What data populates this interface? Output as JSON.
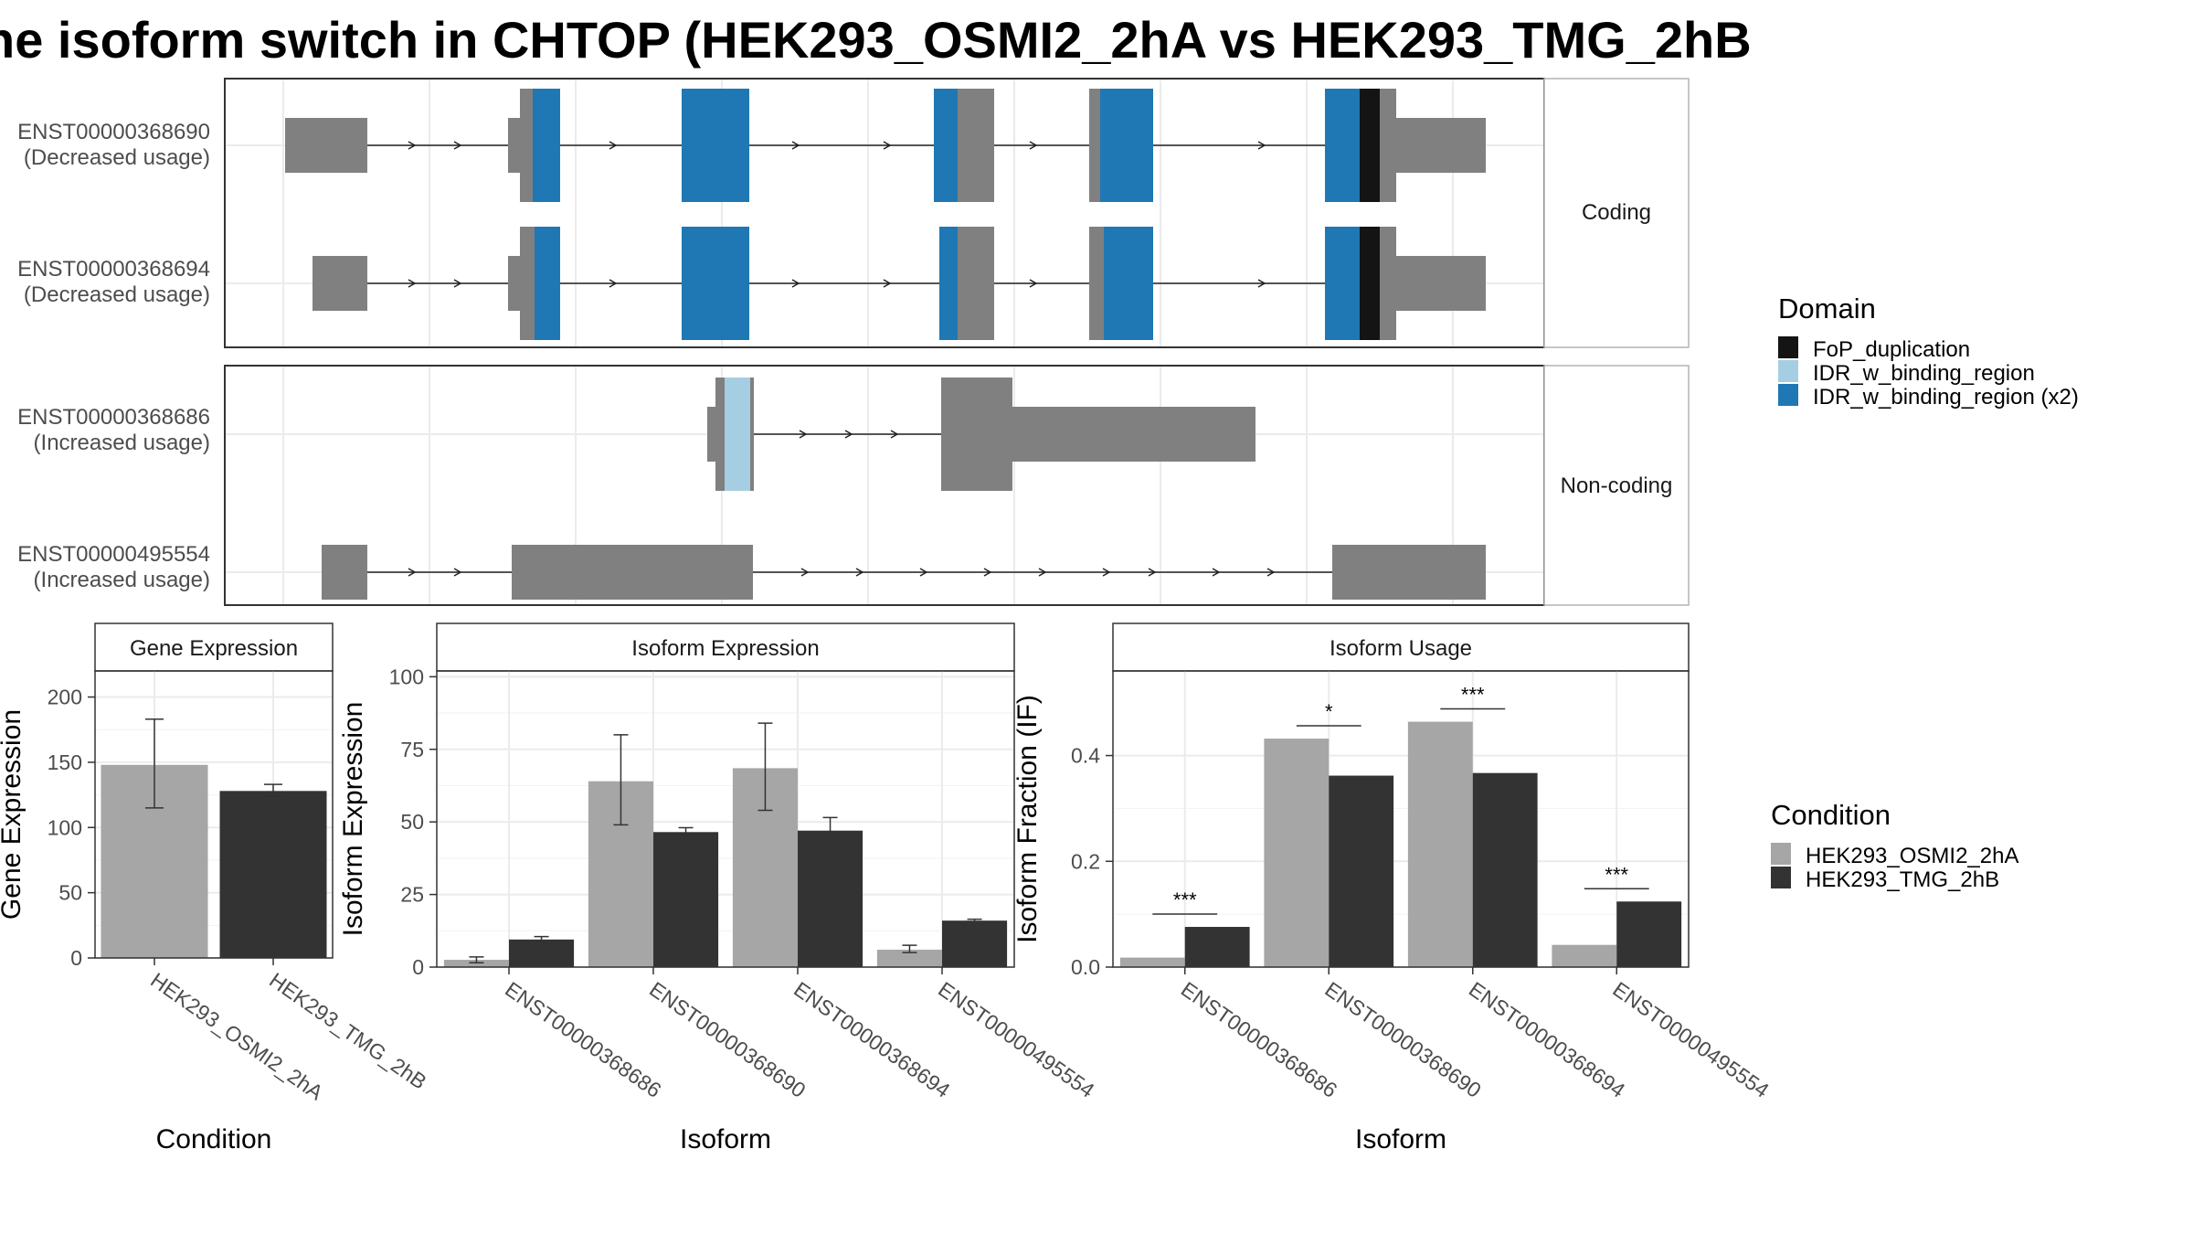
{
  "title": "he isoform switch in CHTOP (HEK293_OSMI2_2hA vs HEK293_TMG_2hB",
  "colors": {
    "exon_grey": "#808080",
    "fop_duplication": "#141414",
    "idr_binding": "#a6cee3",
    "idr_binding_x2": "#1f78b4",
    "osmi2": "#a6a6a6",
    "tmg": "#333333"
  },
  "structure": {
    "facets": [
      "Coding",
      "Non-coding"
    ],
    "transcripts": [
      {
        "id": "ENST00000368690",
        "usage": "(Decreased usage)",
        "facet": "Coding"
      },
      {
        "id": "ENST00000368694",
        "usage": "(Decreased usage)",
        "facet": "Coding"
      },
      {
        "id": "ENST00000368686",
        "usage": "(Increased usage)",
        "facet": "Non-coding"
      },
      {
        "id": "ENST00000495554",
        "usage": "(Increased usage)",
        "facet": "Non-coding"
      }
    ]
  },
  "domain_legend": {
    "title": "Domain",
    "items": [
      {
        "label": "FoP_duplication",
        "color": "#141414"
      },
      {
        "label": "IDR_w_binding_region",
        "color": "#a6cee3"
      },
      {
        "label": "IDR_w_binding_region (x2)",
        "color": "#1f78b4"
      }
    ]
  },
  "condition_legend": {
    "title": "Condition",
    "items": [
      {
        "label": "HEK293_OSMI2_2hA",
        "color": "#a6a6a6"
      },
      {
        "label": "HEK293_TMG_2hB",
        "color": "#333333"
      }
    ]
  },
  "chart_data": [
    {
      "type": "bar",
      "title": "Gene Expression",
      "xlabel": "Condition",
      "ylabel": "Gene Expression",
      "ylim": [
        0,
        220
      ],
      "yticks": [
        0,
        50,
        100,
        150,
        200
      ],
      "categories": [
        "HEK293_OSMI2_2hA",
        "HEK293_TMG_2hB"
      ],
      "values": [
        148,
        128
      ],
      "errors": [
        [
          115,
          183
        ],
        [
          124,
          133
        ]
      ]
    },
    {
      "type": "bar",
      "title": "Isoform Expression",
      "xlabel": "Isoform",
      "ylabel": "Isoform Expression",
      "ylim": [
        0,
        102
      ],
      "yticks": [
        0,
        25,
        50,
        75,
        100
      ],
      "categories": [
        "ENST00000368686",
        "ENST00000368690",
        "ENST00000368694",
        "ENST00000495554"
      ],
      "series": [
        {
          "name": "HEK293_OSMI2_2hA",
          "values": [
            2.5,
            64,
            68.5,
            6
          ],
          "errors": [
            [
              1.5,
              3.5
            ],
            [
              49,
              80
            ],
            [
              54,
              84
            ],
            [
              5,
              7.5
            ]
          ]
        },
        {
          "name": "HEK293_TMG_2hB",
          "values": [
            9.5,
            46.5,
            47,
            16
          ],
          "errors": [
            [
              9,
              10.5
            ],
            [
              45.5,
              48
            ],
            [
              43,
              51.5
            ],
            [
              15.5,
              16.5
            ]
          ]
        }
      ]
    },
    {
      "type": "bar",
      "title": "Isoform Usage",
      "xlabel": "Isoform",
      "ylabel": "Isoform Fraction (IF)",
      "ylim": [
        0,
        0.56
      ],
      "yticks": [
        "0.0",
        "0.2",
        "0.4"
      ],
      "categories": [
        "ENST00000368686",
        "ENST00000368690",
        "ENST00000368694",
        "ENST00000495554"
      ],
      "series": [
        {
          "name": "HEK293_OSMI2_2hA",
          "values": [
            0.018,
            0.432,
            0.464,
            0.042
          ]
        },
        {
          "name": "HEK293_TMG_2hB",
          "values": [
            0.076,
            0.362,
            0.367,
            0.124
          ]
        }
      ],
      "significance": [
        "***",
        "*",
        "***",
        "***"
      ]
    }
  ]
}
